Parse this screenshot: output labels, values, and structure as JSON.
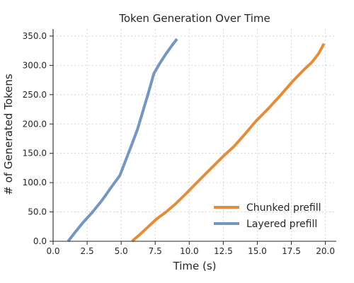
{
  "chart_data": {
    "type": "line",
    "title": "Token Generation Over Time",
    "xlabel": "Time (s)",
    "ylabel": "# of Generated Tokens",
    "xlim": [
      0,
      20.8
    ],
    "ylim": [
      0,
      362
    ],
    "xticks": [
      0,
      2.5,
      5,
      7.5,
      10,
      12.5,
      15,
      17.5,
      20
    ],
    "xtick_labels": [
      "0.0",
      "2.5",
      "5.0",
      "7.5",
      "10.0",
      "12.5",
      "15.0",
      "17.5",
      "20.0"
    ],
    "yticks": [
      0,
      50,
      100,
      150,
      200,
      250,
      300,
      350
    ],
    "ytick_labels": [
      "0.0",
      "50.0",
      "100.0",
      "150.0",
      "200.0",
      "250.0",
      "300.0",
      "350.0"
    ],
    "grid": true,
    "legend_position": "bottom-right",
    "series": [
      {
        "name": "Chunked prefill",
        "color": "#e38d3a",
        "x": [
          5.8,
          6.3,
          7.0,
          7.6,
          8.3,
          9.0,
          9.8,
          10.6,
          11.5,
          12.5,
          13.3,
          14.1,
          14.9,
          15.8,
          16.7,
          17.6,
          18.4,
          19.0,
          19.5,
          19.9
        ],
        "y": [
          0,
          10,
          25,
          38,
          50,
          64,
          82,
          101,
          122,
          145,
          162,
          183,
          205,
          226,
          249,
          273,
          292,
          305,
          320,
          337
        ]
      },
      {
        "name": "Layered prefill",
        "color": "#7596bf",
        "x": [
          1.1,
          1.6,
          2.2,
          2.9,
          3.6,
          4.3,
          4.9,
          5.4,
          5.8,
          6.2,
          6.6,
          7.0,
          7.4,
          7.8,
          8.3,
          8.8,
          9.1
        ],
        "y": [
          0,
          15,
          32,
          50,
          70,
          93,
          112,
          142,
          166,
          191,
          222,
          253,
          286,
          302,
          320,
          336,
          345
        ]
      }
    ]
  }
}
